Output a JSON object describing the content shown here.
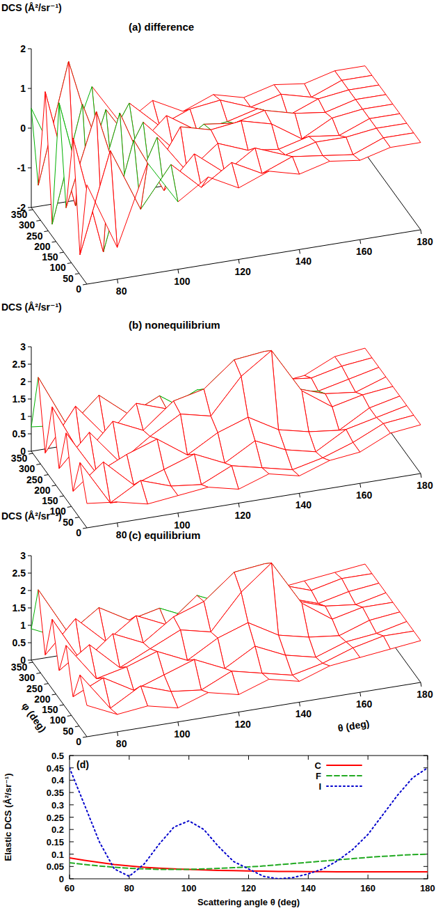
{
  "chart_data": [
    {
      "type": "surface",
      "title": "(a) difference",
      "z_label": "DCS (Å²/sr⁻¹)",
      "color": "#ff0000",
      "x": [
        70,
        80,
        90,
        100,
        110,
        120,
        130,
        140,
        150,
        160,
        170,
        180
      ],
      "y": [
        0,
        45,
        90,
        135,
        180,
        225,
        270,
        315,
        360
      ],
      "z": [
        [
          0.5,
          -1.2,
          0.8,
          -0.3,
          0.2,
          -0.2,
          0.1,
          -0.1,
          0.1,
          0.0,
          0.2,
          0.2
        ],
        [
          -1.5,
          1.0,
          -0.6,
          0.4,
          -0.3,
          0.2,
          -0.2,
          0.1,
          0.0,
          -0.1,
          0.2,
          0.2
        ],
        [
          1.2,
          -1.8,
          0.9,
          -0.5,
          0.3,
          -0.3,
          0.2,
          -0.1,
          0.1,
          0.1,
          0.2,
          0.2
        ],
        [
          -0.8,
          1.5,
          -1.0,
          0.6,
          -0.4,
          0.2,
          -0.1,
          -0.2,
          0.0,
          -0.1,
          0.2,
          0.2
        ],
        [
          1.6,
          -1.4,
          1.1,
          -0.7,
          0.5,
          0.3,
          0.4,
          0.2,
          -0.3,
          0.1,
          0.2,
          0.2
        ],
        [
          -1.7,
          1.2,
          -0.9,
          0.5,
          -0.3,
          0.2,
          0.1,
          0.3,
          0.1,
          0.0,
          0.2,
          0.2
        ],
        [
          1.4,
          -1.6,
          0.7,
          -0.4,
          0.3,
          -0.2,
          -0.1,
          0.1,
          -0.2,
          0.1,
          0.2,
          0.2
        ],
        [
          -1.2,
          1.8,
          -0.8,
          0.5,
          -0.2,
          0.1,
          0.2,
          -0.1,
          0.1,
          -0.1,
          0.2,
          0.2
        ],
        [
          0.5,
          -1.2,
          0.8,
          -0.3,
          0.2,
          -0.2,
          0.1,
          -0.1,
          0.1,
          0.0,
          0.2,
          0.2
        ]
      ],
      "xlim": [
        70,
        180
      ],
      "xticks": [
        80,
        100,
        120,
        140,
        160,
        180
      ],
      "ylim": [
        0,
        360
      ],
      "yticks": [
        0,
        50,
        100,
        150,
        200,
        250,
        300,
        350
      ],
      "zlim": [
        -2,
        2
      ],
      "zticks": [
        -2,
        -1,
        0,
        1,
        2
      ]
    },
    {
      "type": "surface",
      "title": "(b) nonequilibrium",
      "z_label": "DCS (Å²/sr⁻¹)",
      "color": "#ff0000",
      "x": [
        70,
        80,
        90,
        100,
        110,
        120,
        130,
        140,
        150,
        160,
        170,
        180
      ],
      "y": [
        0,
        45,
        90,
        135,
        180,
        225,
        270,
        315,
        360
      ],
      "z": [
        [
          0.7,
          0.6,
          0.4,
          0.5,
          0.6,
          0.4,
          0.7,
          0.5,
          0.8,
          0.9,
          1.3,
          1.4
        ],
        [
          1.6,
          0.3,
          0.8,
          0.5,
          0.4,
          0.8,
          0.6,
          0.4,
          0.6,
          0.9,
          1.3,
          1.4
        ],
        [
          0.5,
          1.2,
          0.4,
          0.7,
          1.0,
          0.6,
          1.1,
          0.7,
          0.5,
          1.0,
          1.2,
          1.4
        ],
        [
          1.9,
          0.6,
          1.0,
          1.3,
          0.7,
          1.2,
          1.5,
          1.0,
          0.8,
          0.7,
          1.2,
          1.4
        ],
        [
          0.6,
          1.5,
          0.5,
          1.1,
          1.6,
          1.4,
          2.4,
          3.0,
          1.7,
          1.1,
          1.3,
          1.4
        ],
        [
          2.1,
          0.5,
          1.4,
          1.0,
          1.7,
          1.9,
          2.6,
          2.7,
          1.5,
          1.2,
          1.1,
          1.4
        ],
        [
          0.5,
          1.7,
          0.7,
          1.5,
          1.2,
          1.6,
          1.2,
          1.4,
          1.1,
          1.0,
          1.2,
          1.4
        ],
        [
          2.4,
          0.8,
          1.6,
          0.9,
          1.3,
          0.7,
          1.0,
          0.8,
          1.2,
          1.1,
          1.3,
          1.4
        ],
        [
          0.7,
          0.6,
          0.4,
          0.5,
          0.6,
          0.4,
          0.7,
          0.5,
          0.8,
          0.9,
          1.3,
          1.4
        ]
      ],
      "xlim": [
        70,
        180
      ],
      "xticks": [
        80,
        100,
        120,
        140,
        160,
        180
      ],
      "ylim": [
        0,
        360
      ],
      "yticks": [
        0,
        50,
        100,
        150,
        200,
        250,
        300,
        350
      ],
      "zlim": [
        0,
        3
      ],
      "zticks": [
        0,
        0.5,
        1,
        1.5,
        2,
        2.5,
        3
      ]
    },
    {
      "type": "surface",
      "title": "(c) equilibrium",
      "z_label": "DCS (Å²/sr⁻¹)",
      "x_label": "θ (deg)",
      "y_label": "φ (deg)",
      "color": "#ff0000",
      "x": [
        70,
        80,
        90,
        100,
        110,
        120,
        130,
        140,
        150,
        160,
        170,
        180
      ],
      "y": [
        0,
        45,
        90,
        135,
        180,
        225,
        270,
        315,
        360
      ],
      "z": [
        [
          0.9,
          0.5,
          0.6,
          0.4,
          0.7,
          0.5,
          0.8,
          0.6,
          0.9,
          1.0,
          1.1,
          1.2
        ],
        [
          1.5,
          0.4,
          0.9,
          0.6,
          0.5,
          0.9,
          0.7,
          0.5,
          0.7,
          1.0,
          1.2,
          1.2
        ],
        [
          0.6,
          1.0,
          0.5,
          0.8,
          1.1,
          0.7,
          1.2,
          0.8,
          0.6,
          0.9,
          1.0,
          1.2
        ],
        [
          1.8,
          0.7,
          0.9,
          1.2,
          0.8,
          1.3,
          1.6,
          1.1,
          0.9,
          0.8,
          1.1,
          1.2
        ],
        [
          0.8,
          1.4,
          0.6,
          1.0,
          1.4,
          1.2,
          2.2,
          2.9,
          1.6,
          1.0,
          1.2,
          1.2
        ],
        [
          2.0,
          0.6,
          1.3,
          0.9,
          1.5,
          1.8,
          2.5,
          2.6,
          1.4,
          1.1,
          1.0,
          1.2
        ],
        [
          0.7,
          1.6,
          0.8,
          1.4,
          1.0,
          1.7,
          1.3,
          1.5,
          1.2,
          0.9,
          1.1,
          1.2
        ],
        [
          2.3,
          0.9,
          1.5,
          1.0,
          1.2,
          0.8,
          1.1,
          0.9,
          1.3,
          1.0,
          1.2,
          1.2
        ],
        [
          0.9,
          0.5,
          0.6,
          0.4,
          0.7,
          0.5,
          0.8,
          0.6,
          0.9,
          1.0,
          1.1,
          1.2
        ]
      ],
      "xlim": [
        70,
        180
      ],
      "xticks": [
        80,
        100,
        120,
        140,
        160,
        180
      ],
      "ylim": [
        0,
        360
      ],
      "yticks": [
        0,
        50,
        100,
        150,
        200,
        250,
        300,
        350
      ],
      "zlim": [
        0,
        3
      ],
      "zticks": [
        0,
        0.5,
        1,
        1.5,
        2,
        2.5,
        3
      ]
    },
    {
      "type": "line",
      "title": "(d)",
      "x_label": "Scattering angle θ (deg)",
      "y_label": "Elastic DCS (Å²/sr⁻¹)",
      "x": [
        60,
        65,
        70,
        75,
        80,
        85,
        90,
        95,
        100,
        105,
        110,
        115,
        120,
        125,
        130,
        135,
        140,
        145,
        150,
        155,
        160,
        165,
        170,
        175,
        180
      ],
      "series": [
        {
          "name": "C",
          "color": "#ff0000",
          "line_style": "solid",
          "values": [
            0.085,
            0.075,
            0.066,
            0.058,
            0.052,
            0.047,
            0.043,
            0.04,
            0.038,
            0.036,
            0.034,
            0.033,
            0.032,
            0.031,
            0.03,
            0.03,
            0.029,
            0.029,
            0.028,
            0.028,
            0.028,
            0.028,
            0.028,
            0.028,
            0.028
          ]
        },
        {
          "name": "F",
          "color": "#22aa22",
          "line_style": "dashed",
          "values": [
            0.065,
            0.058,
            0.052,
            0.047,
            0.043,
            0.04,
            0.038,
            0.038,
            0.038,
            0.04,
            0.042,
            0.045,
            0.048,
            0.052,
            0.057,
            0.062,
            0.067,
            0.072,
            0.077,
            0.082,
            0.087,
            0.091,
            0.095,
            0.098,
            0.1
          ]
        },
        {
          "name": "I",
          "color": "#0000cc",
          "line_style": "dotted",
          "values": [
            0.45,
            0.3,
            0.15,
            0.04,
            0.01,
            0.06,
            0.14,
            0.21,
            0.235,
            0.2,
            0.13,
            0.07,
            0.04,
            0.01,
            0,
            0.005,
            0.02,
            0.04,
            0.075,
            0.12,
            0.18,
            0.26,
            0.34,
            0.41,
            0.45
          ]
        }
      ],
      "xlim": [
        60,
        180
      ],
      "xticks": [
        60,
        80,
        100,
        120,
        140,
        160,
        180
      ],
      "ylim": [
        0,
        0.5
      ],
      "yticks": [
        0,
        0.05,
        0.1,
        0.15,
        0.2,
        0.25,
        0.3,
        0.35,
        0.4,
        0.45,
        0.5
      ],
      "legend": "upper-right"
    }
  ]
}
